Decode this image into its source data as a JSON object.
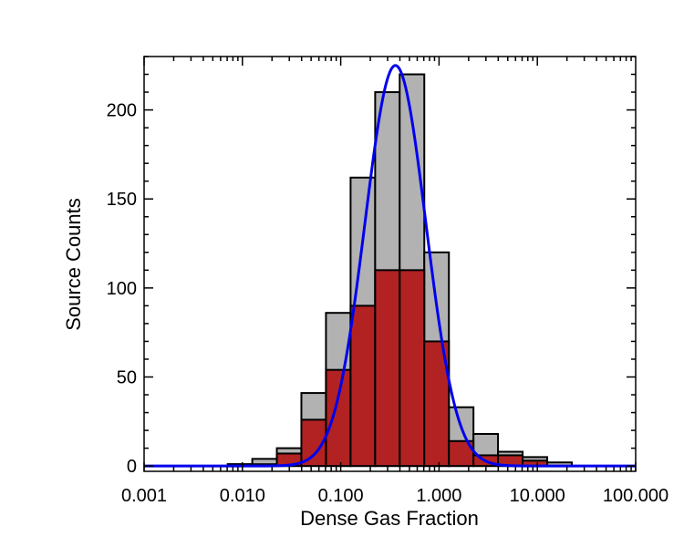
{
  "chart_data": {
    "type": "bar",
    "title": "",
    "xlabel": "Dense Gas Fraction",
    "ylabel": "Source Counts",
    "x_scale": "log",
    "xlim": [
      0.001,
      100.0
    ],
    "ylim": [
      -3,
      230
    ],
    "x_ticks": [
      {
        "value": 0.001,
        "label": "0.001"
      },
      {
        "value": 0.01,
        "label": "0.010"
      },
      {
        "value": 0.1,
        "label": "0.100"
      },
      {
        "value": 1.0,
        "label": "1.000"
      },
      {
        "value": 10.0,
        "label": "10.000"
      },
      {
        "value": 100.0,
        "label": "100.000"
      }
    ],
    "y_ticks": [
      {
        "value": 0,
        "label": "0"
      },
      {
        "value": 50,
        "label": "50"
      },
      {
        "value": 100,
        "label": "100"
      },
      {
        "value": 150,
        "label": "150"
      },
      {
        "value": 200,
        "label": "200"
      }
    ],
    "bin_edges": [
      0.0071,
      0.0126,
      0.0224,
      0.0398,
      0.0708,
      0.126,
      0.224,
      0.398,
      0.708,
      1.26,
      2.24,
      3.98,
      7.08,
      12.6,
      22.4
    ],
    "series": [
      {
        "values": [
          1,
          4,
          10,
          41,
          86,
          162,
          210,
          220,
          120,
          33,
          18,
          8,
          5,
          2
        ],
        "color": "#b2b2b2"
      },
      {
        "values": [
          1,
          1,
          7,
          26,
          54,
          90,
          110,
          110,
          70,
          14,
          6,
          6,
          3,
          0
        ],
        "color": "#b22222"
      }
    ],
    "fit_curve": {
      "type": "log-normal",
      "peak_x": 0.36,
      "peak_y": 225,
      "sigma_log10": 0.31,
      "color": "#0000ee"
    },
    "grid": false,
    "legend": "none"
  }
}
